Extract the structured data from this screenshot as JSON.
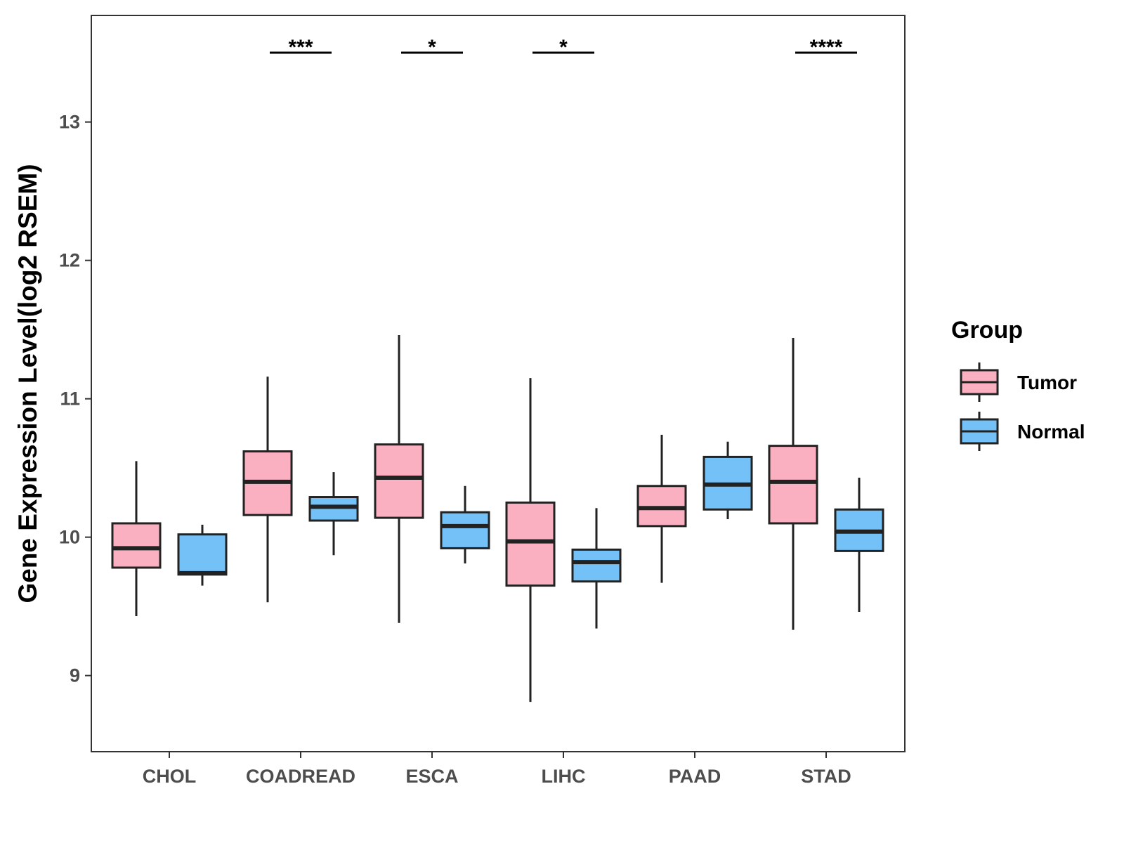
{
  "chart_data": {
    "type": "boxplot",
    "title": "",
    "xlabel": "",
    "ylabel": "Gene Expression Level(log2 RSEM)",
    "ylim": [
      8.45,
      13.77
    ],
    "yticks": [
      9,
      10,
      11,
      12,
      13
    ],
    "categories": [
      "CHOL",
      "COADREAD",
      "ESCA",
      "LIHC",
      "PAAD",
      "STAD"
    ],
    "series": [
      {
        "name": "Tumor",
        "color": "#fbb0c2",
        "boxes": [
          {
            "min": 9.43,
            "q1": 9.78,
            "median": 9.92,
            "q3": 10.1,
            "max": 10.55
          },
          {
            "min": 9.53,
            "q1": 10.16,
            "median": 10.4,
            "q3": 10.62,
            "max": 11.16
          },
          {
            "min": 9.38,
            "q1": 10.14,
            "median": 10.43,
            "q3": 10.67,
            "max": 11.46
          },
          {
            "min": 8.81,
            "q1": 9.65,
            "median": 9.97,
            "q3": 10.25,
            "max": 11.15
          },
          {
            "min": 9.67,
            "q1": 10.08,
            "median": 10.21,
            "q3": 10.37,
            "max": 10.74
          },
          {
            "min": 9.33,
            "q1": 10.1,
            "median": 10.4,
            "q3": 10.66,
            "max": 11.44
          }
        ]
      },
      {
        "name": "Normal",
        "color": "#74c1f8",
        "boxes": [
          {
            "min": 9.65,
            "q1": 9.73,
            "median": 9.74,
            "q3": 10.02,
            "max": 10.09
          },
          {
            "min": 9.87,
            "q1": 10.12,
            "median": 10.22,
            "q3": 10.29,
            "max": 10.47
          },
          {
            "min": 9.81,
            "q1": 9.92,
            "median": 10.08,
            "q3": 10.18,
            "max": 10.37
          },
          {
            "min": 9.34,
            "q1": 9.68,
            "median": 9.82,
            "q3": 9.91,
            "max": 10.21
          },
          {
            "min": 10.13,
            "q1": 10.2,
            "median": 10.38,
            "q3": 10.58,
            "max": 10.69
          },
          {
            "min": 9.46,
            "q1": 9.9,
            "median": 10.04,
            "q3": 10.2,
            "max": 10.43
          }
        ]
      }
    ],
    "significance": [
      {
        "category": "COADREAD",
        "label": "***"
      },
      {
        "category": "ESCA",
        "label": "*"
      },
      {
        "category": "LIHC",
        "label": "*"
      },
      {
        "category": "STAD",
        "label": "****"
      }
    ],
    "legend": {
      "title": "Group",
      "position": "right"
    }
  }
}
